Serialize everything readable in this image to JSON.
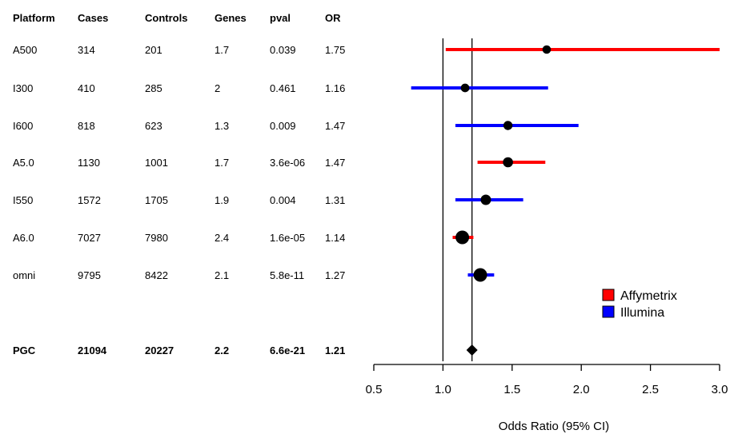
{
  "chart_data": {
    "type": "forest",
    "xlabel": "Odds Ratio (95% CI)",
    "xlim": [
      0.5,
      3.0
    ],
    "xticks": [
      "0.5",
      "1.0",
      "1.5",
      "2.0",
      "2.5",
      "3.0"
    ],
    "reference_lines": [
      1.0,
      1.21
    ],
    "columns": [
      "Platform",
      "Cases",
      "Controls",
      "Genes",
      "pval",
      "OR"
    ],
    "rows": [
      {
        "platform": "A500",
        "cases": "314",
        "controls": "201",
        "genes": "1.7",
        "pval": "0.039",
        "or_label": "1.75",
        "or": 1.75,
        "lo": 1.02,
        "hi": 3.0,
        "group": "Affymetrix",
        "weight": 0.2
      },
      {
        "platform": "I300",
        "cases": "410",
        "controls": "285",
        "genes": "2",
        "pval": "0.461",
        "or_label": "1.16",
        "or": 1.16,
        "lo": 0.77,
        "hi": 1.76,
        "group": "Illumina",
        "weight": 0.22
      },
      {
        "platform": "I600",
        "cases": "818",
        "controls": "623",
        "genes": "1.3",
        "pval": "0.009",
        "or_label": "1.47",
        "or": 1.47,
        "lo": 1.09,
        "hi": 1.98,
        "group": "Illumina",
        "weight": 0.3
      },
      {
        "platform": "A5.0",
        "cases": "1130",
        "controls": "1001",
        "genes": "1.7",
        "pval": "3.6e-06",
        "or_label": "1.47",
        "or": 1.47,
        "lo": 1.25,
        "hi": 1.74,
        "group": "Affymetrix",
        "weight": 0.45
      },
      {
        "platform": "I550",
        "cases": "1572",
        "controls": "1705",
        "genes": "1.9",
        "pval": "0.004",
        "or_label": "1.31",
        "or": 1.31,
        "lo": 1.09,
        "hi": 1.58,
        "group": "Illumina",
        "weight": 0.5
      },
      {
        "platform": "A6.0",
        "cases": "7027",
        "controls": "7980",
        "genes": "2.4",
        "pval": "1.6e-05",
        "or_label": "1.14",
        "or": 1.14,
        "lo": 1.07,
        "hi": 1.22,
        "group": "Affymetrix",
        "weight": 1.0
      },
      {
        "platform": "omni",
        "cases": "9795",
        "controls": "8422",
        "genes": "2.1",
        "pval": "5.8e-11",
        "or_label": "1.27",
        "or": 1.27,
        "lo": 1.18,
        "hi": 1.37,
        "group": "Illumina",
        "weight": 1.0
      }
    ],
    "summary": {
      "platform": "PGC",
      "cases": "21094",
      "controls": "20227",
      "genes": "2.2",
      "pval": "6.6e-21",
      "or_label": "1.21",
      "or": 1.21
    },
    "legend": {
      "position": "right",
      "items": [
        {
          "name": "Affymetrix",
          "color": "#ff0000"
        },
        {
          "name": "Illumina",
          "color": "#0000ff"
        }
      ]
    },
    "colors": {
      "Affymetrix": "#ff0000",
      "Illumina": "#0000ff",
      "point": "#000000"
    }
  }
}
